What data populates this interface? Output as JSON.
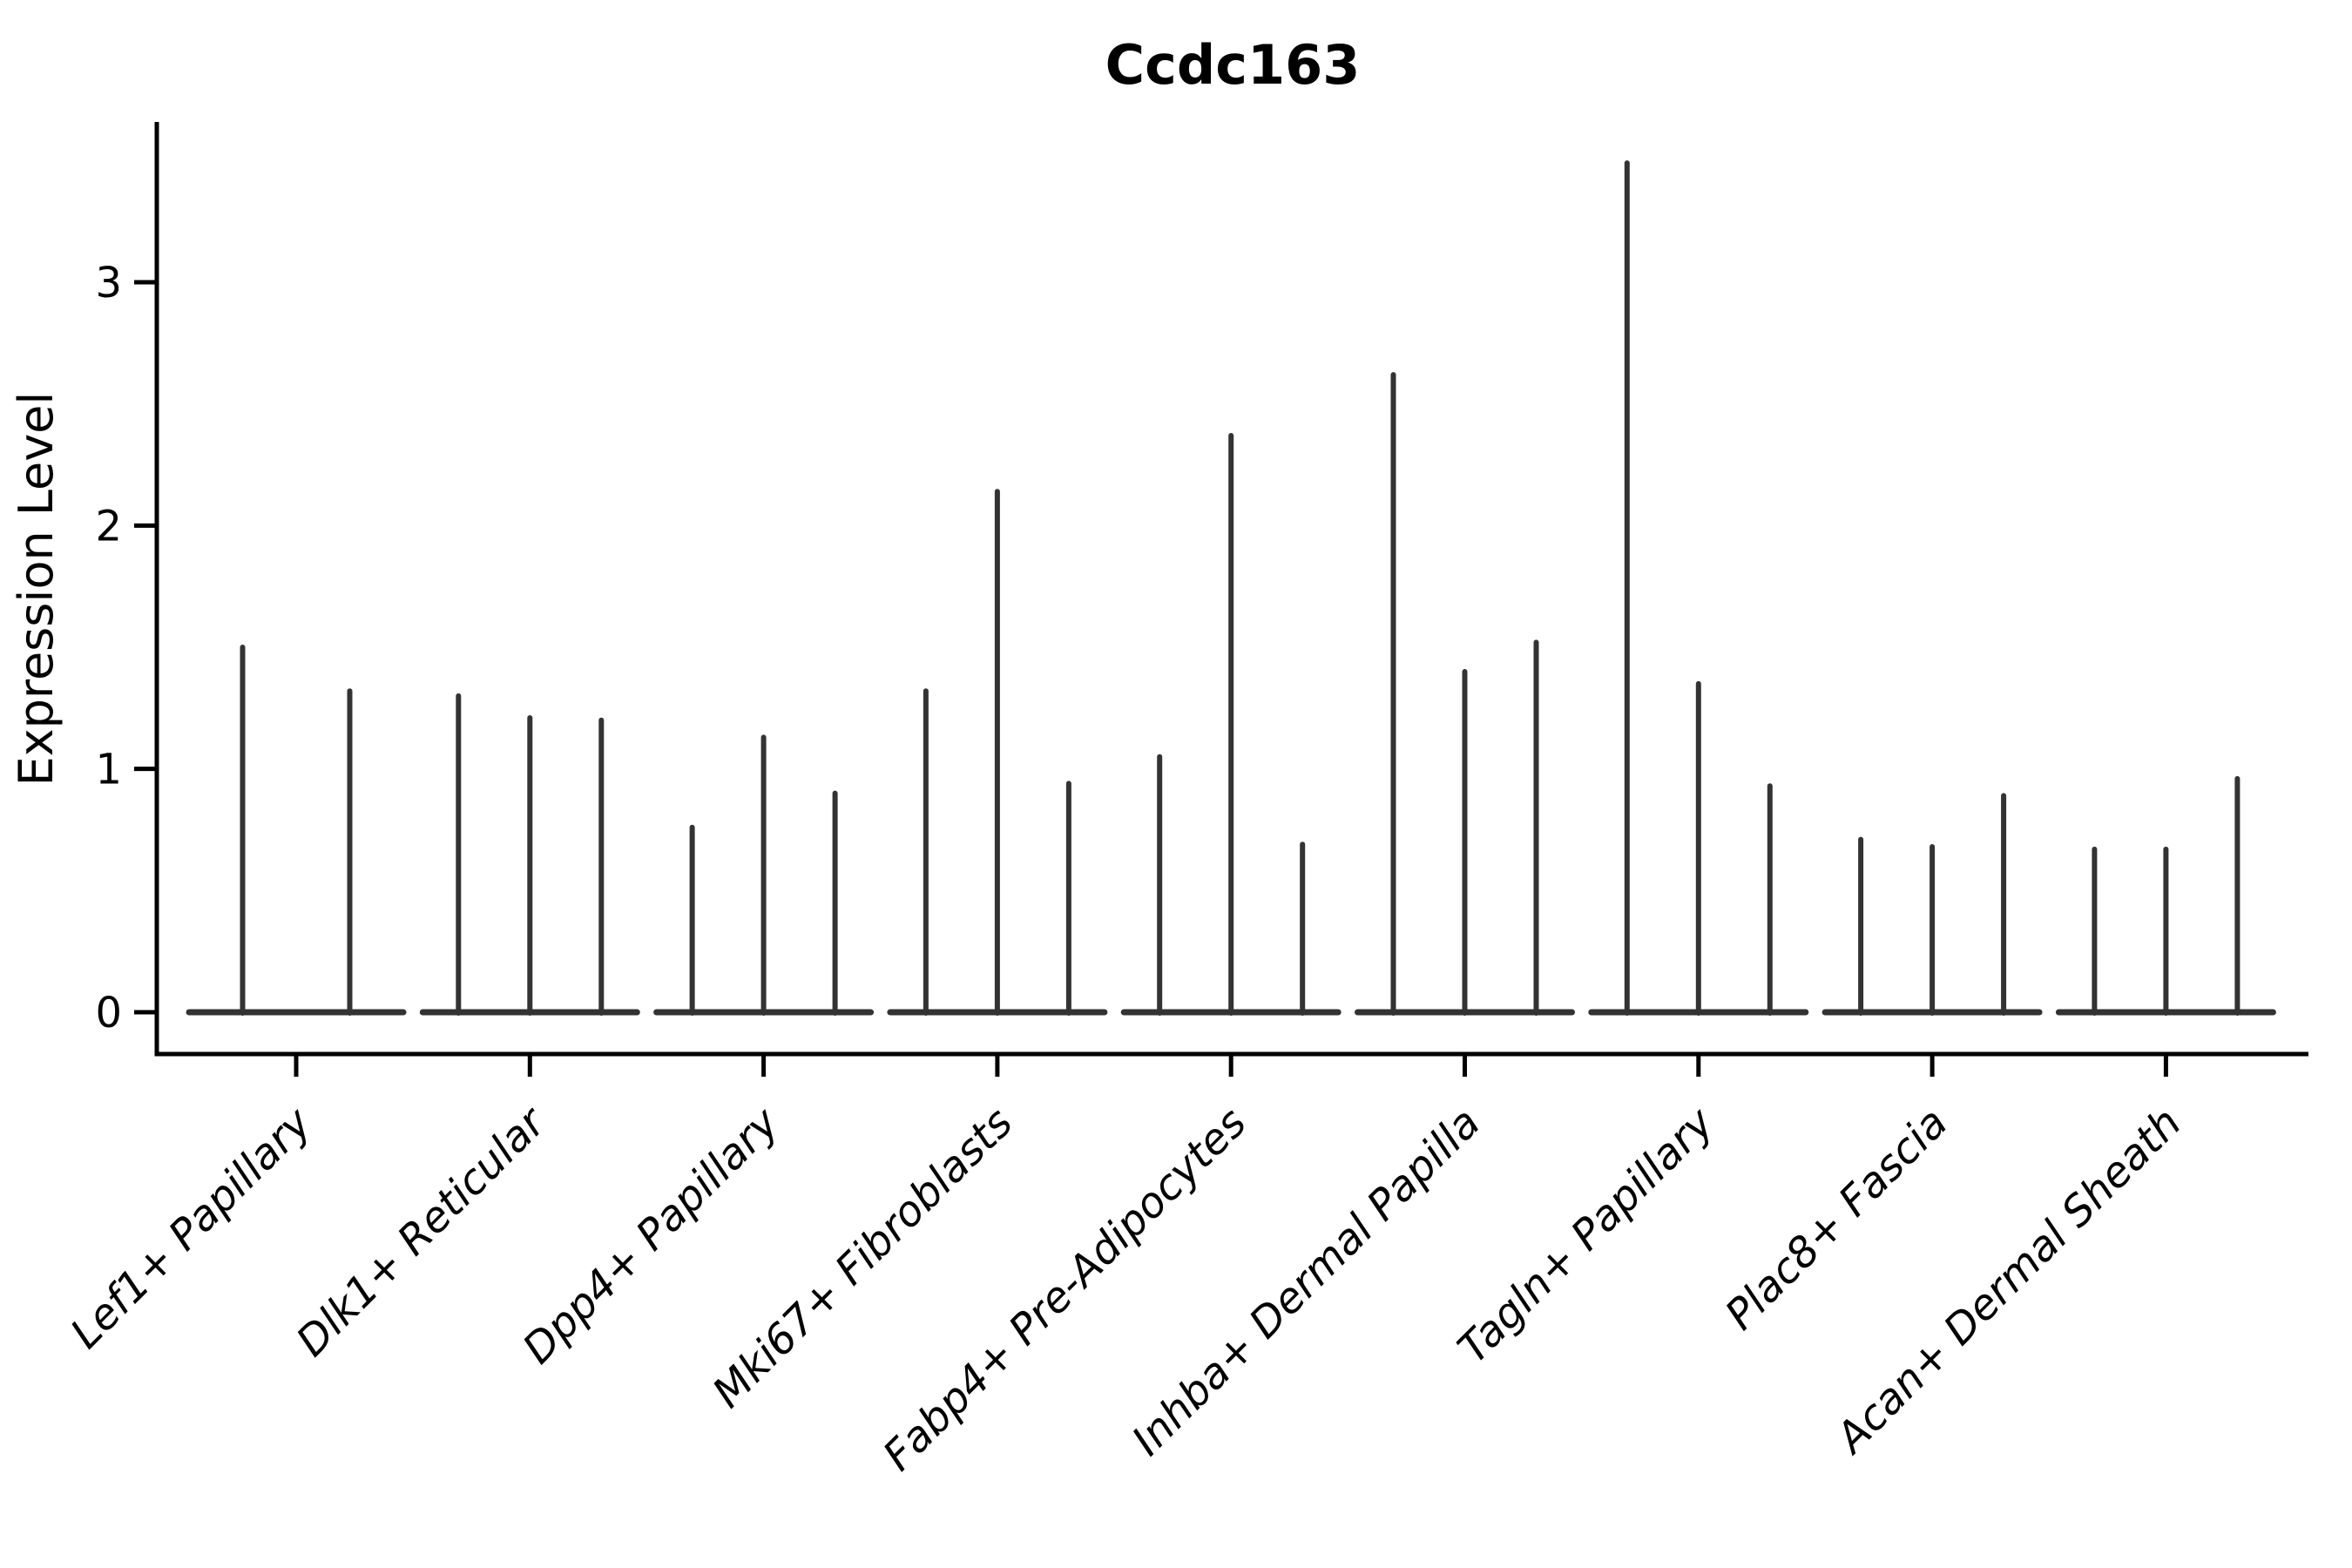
{
  "title": "Ccdc163",
  "y_axis": {
    "label": "Expression Level",
    "tick_labels": [
      "0",
      "1",
      "2",
      "3"
    ]
  },
  "colors": {
    "violin": "#333333",
    "axis": "#000000",
    "text": "#000000",
    "background": "#ffffff"
  },
  "chart_data": {
    "type": "violin",
    "title": "Ccdc163",
    "xlabel": "",
    "ylabel": "Expression Level",
    "ylim": [
      0,
      3.66
    ],
    "yticks": [
      0,
      1,
      2,
      3
    ],
    "grid": false,
    "legend": false,
    "note": "Seurat/scanpy-style stacked violin plot; expression is near zero for most cells so each violin collapses to a flat baseline at 0 with a thin vertical spike reaching the maximum expression value. Groups of violins share one baseline per category.",
    "categories": [
      "Lef1+ Papillary",
      "Dlk1+ Reticular",
      "Dpp4+ Papillary",
      "Mki67+ Fibroblasts",
      "Fabp4+ Pre-Adipocytes",
      "Inhba+ Dermal Papilla",
      "Tagln+ Papillary",
      "Plac8+ Fascia",
      "Acan+ Dermal Sheath"
    ],
    "series": [
      {
        "category": "Lef1+ Papillary",
        "spike_maxima": [
          1.5,
          1.32
        ]
      },
      {
        "category": "Dlk1+ Reticular",
        "spike_maxima": [
          1.3,
          1.21,
          1.2
        ]
      },
      {
        "category": "Dpp4+ Papillary",
        "spike_maxima": [
          0.76,
          1.13,
          0.9
        ]
      },
      {
        "category": "Mki67+ Fibroblasts",
        "spike_maxima": [
          1.32,
          2.14,
          0.94
        ]
      },
      {
        "category": "Fabp4+ Pre-Adipocytes",
        "spike_maxima": [
          1.05,
          2.37,
          0.69
        ]
      },
      {
        "category": "Inhba+ Dermal Papilla",
        "spike_maxima": [
          2.62,
          1.4,
          1.52
        ]
      },
      {
        "category": "Tagln+ Papillary",
        "spike_maxima": [
          3.49,
          1.35,
          0.93
        ]
      },
      {
        "category": "Plac8+ Fascia",
        "spike_maxima": [
          0.71,
          0.68,
          0.89
        ]
      },
      {
        "category": "Acan+ Dermal Sheath",
        "spike_maxima": [
          0.67,
          0.67,
          0.96
        ]
      }
    ]
  }
}
